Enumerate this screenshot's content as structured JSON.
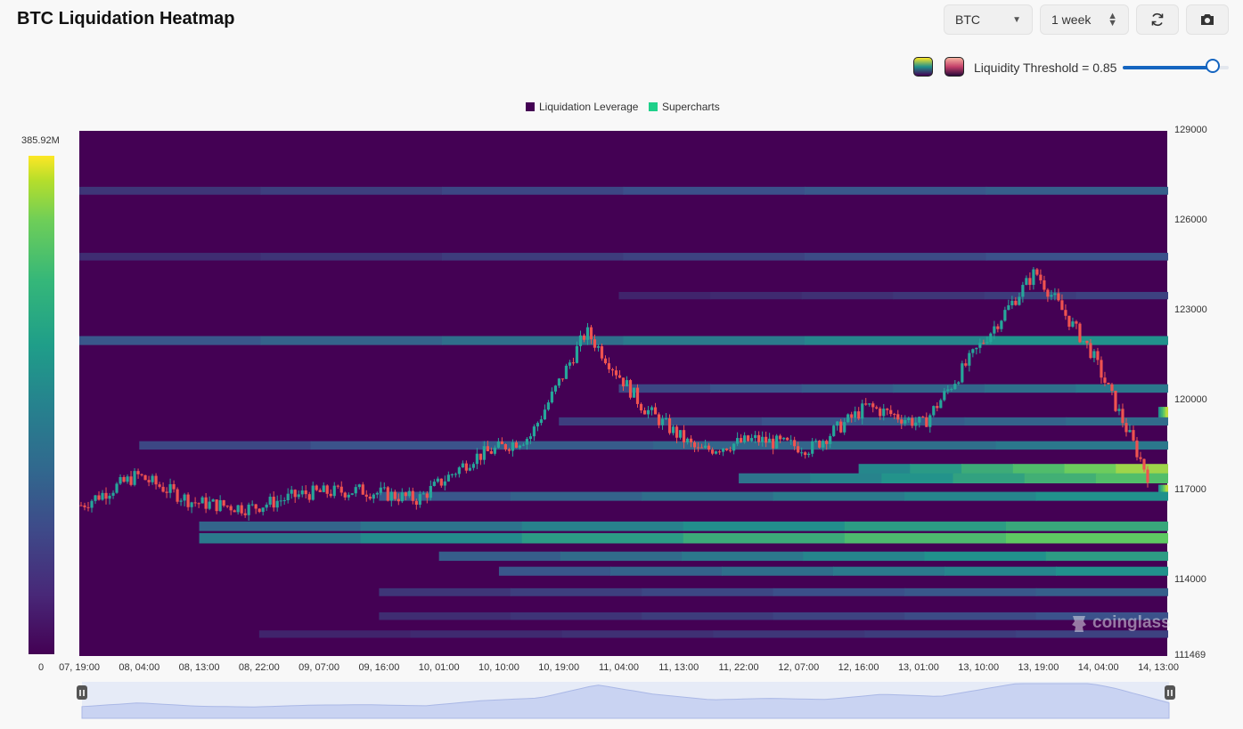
{
  "header": {
    "title": "BTC Liquidation Heatmap",
    "coin_select": "BTC",
    "period_select": "1 week",
    "refresh_icon": "refresh-icon",
    "camera_icon": "camera-icon"
  },
  "threshold": {
    "label": "Liquidity Threshold = 0.85",
    "value": 0.85
  },
  "palettes": {
    "viridis": [
      "#440154",
      "#21918c",
      "#fde725"
    ],
    "alternate": [
      "#2a0a3a",
      "#c4406a",
      "#f7b2a0"
    ]
  },
  "colorbar": {
    "max_label": "385.92M",
    "min_label": "0"
  },
  "watermark": "coinglass",
  "colors": {
    "background": "#440154",
    "accent": "#1565c0",
    "candle_up": "#26a69a",
    "candle_down": "#ef5350"
  },
  "chart_data": {
    "type": "heatmap",
    "title": "BTC Liquidation Heatmap",
    "legend": [
      {
        "name": "Liquidation Leverage",
        "color": "#440154"
      },
      {
        "name": "Supercharts",
        "color": "#1fd08a"
      }
    ],
    "legend_position": "top-center",
    "y_ticks": [
      "129000",
      "126000",
      "123000",
      "120000",
      "117000",
      "114000",
      "111469"
    ],
    "ylim": [
      111469,
      129000
    ],
    "x_ticks": [
      "07, 19:00",
      "08, 04:00",
      "08, 13:00",
      "08, 22:00",
      "09, 07:00",
      "09, 16:00",
      "10, 01:00",
      "10, 10:00",
      "10, 19:00",
      "11, 04:00",
      "11, 13:00",
      "11, 22:00",
      "12, 07:00",
      "12, 16:00",
      "13, 01:00",
      "13, 10:00",
      "13, 19:00",
      "14, 04:00",
      "14, 13:00"
    ],
    "price_series": [
      {
        "t": "07, 19:00",
        "price": 116500
      },
      {
        "t": "08, 04:00",
        "price": 117500
      },
      {
        "t": "08, 13:00",
        "price": 116600
      },
      {
        "t": "08, 22:00",
        "price": 116400
      },
      {
        "t": "09, 07:00",
        "price": 116900
      },
      {
        "t": "09, 16:00",
        "price": 117000
      },
      {
        "t": "10, 01:00",
        "price": 116700
      },
      {
        "t": "10, 10:00",
        "price": 118100
      },
      {
        "t": "10, 19:00",
        "price": 118800
      },
      {
        "t": "11, 04:00",
        "price": 122300
      },
      {
        "t": "11, 13:00",
        "price": 119800
      },
      {
        "t": "11, 22:00",
        "price": 118300
      },
      {
        "t": "12, 07:00",
        "price": 118700
      },
      {
        "t": "12, 16:00",
        "price": 118400
      },
      {
        "t": "13, 01:00",
        "price": 119800
      },
      {
        "t": "13, 10:00",
        "price": 119200
      },
      {
        "t": "13, 19:00",
        "price": 121800
      },
      {
        "t": "14, 04:00",
        "price": 124300
      },
      {
        "t": "14, 13:00",
        "price": 121600
      },
      {
        "t": "end",
        "price": 117500
      }
    ],
    "liquidation_bands": [
      {
        "price": 127000,
        "t_start": "14, 00:00",
        "intensity": 0.3
      },
      {
        "price": 124800,
        "t_start": "14, 00:00",
        "intensity": 0.25
      },
      {
        "price": 123500,
        "t_start": "11, 04:00",
        "intensity": 0.2
      },
      {
        "price": 122000,
        "t_start": "13, 07:00",
        "intensity": 0.5
      },
      {
        "price": 120400,
        "t_start": "11, 04:00",
        "intensity": 0.4
      },
      {
        "price": 119600,
        "t_start": "14, 13:00",
        "intensity": 0.9
      },
      {
        "price": 119300,
        "t_start": "10, 19:00",
        "intensity": 0.35
      },
      {
        "price": 118500,
        "t_start": "08, 04:00",
        "intensity": 0.4
      },
      {
        "price": 117700,
        "t_start": "12, 16:00",
        "intensity": 0.85
      },
      {
        "price": 117400,
        "t_start": "11, 22:00",
        "intensity": 0.7
      },
      {
        "price": 117000,
        "t_start": "14, 13:00",
        "intensity": 0.9
      },
      {
        "price": 116800,
        "t_start": "09, 16:00",
        "intensity": 0.5
      },
      {
        "price": 115800,
        "t_start": "08, 13:00",
        "intensity": 0.6
      },
      {
        "price": 115400,
        "t_start": "08, 13:00",
        "intensity": 0.75
      },
      {
        "price": 114800,
        "t_start": "10, 01:00",
        "intensity": 0.55
      },
      {
        "price": 114300,
        "t_start": "10, 10:00",
        "intensity": 0.5
      },
      {
        "price": 113600,
        "t_start": "09, 16:00",
        "intensity": 0.3
      },
      {
        "price": 112800,
        "t_start": "09, 16:00",
        "intensity": 0.25
      },
      {
        "price": 112200,
        "t_start": "08, 22:00",
        "intensity": 0.2
      }
    ],
    "colorbar_range": [
      0,
      385920000
    ]
  }
}
